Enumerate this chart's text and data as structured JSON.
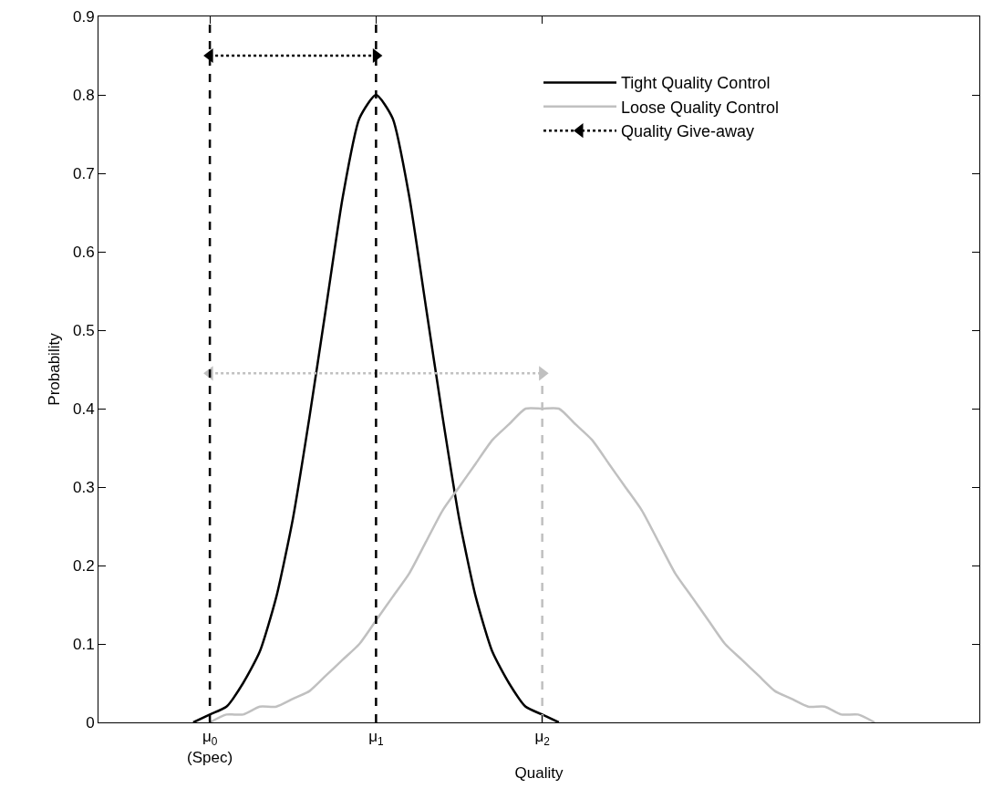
{
  "chart_data": {
    "type": "line",
    "xlabel": "Quality",
    "ylabel": "Probability",
    "xlim": [
      -0.67,
      4.63
    ],
    "ylim": [
      0,
      0.9
    ],
    "xticks": [
      {
        "value": 0,
        "label": "μ$_{0}$\n(Spec)"
      },
      {
        "value": 1,
        "label": "μ$_{1}$"
      },
      {
        "value": 2,
        "label": "μ$_{2}$"
      }
    ],
    "yticks": [
      0,
      0.1,
      0.2,
      0.3,
      0.4,
      0.5,
      0.6,
      0.7,
      0.8,
      0.9
    ],
    "legend": "top right",
    "series": [
      {
        "name": "Tight Quality Control",
        "color": "#000000",
        "line_style": "solid",
        "x": [
          -0.1,
          0.0,
          0.1,
          0.2,
          0.3,
          0.4,
          0.5,
          0.6,
          0.7,
          0.8,
          0.9,
          1.0,
          1.1,
          1.2,
          1.3,
          1.4,
          1.5,
          1.6,
          1.7,
          1.8,
          1.9,
          2.0,
          2.1
        ],
        "values": [
          0.0,
          0.01,
          0.02,
          0.05,
          0.09,
          0.16,
          0.26,
          0.39,
          0.53,
          0.67,
          0.77,
          0.8,
          0.77,
          0.67,
          0.53,
          0.39,
          0.26,
          0.16,
          0.09,
          0.05,
          0.02,
          0.01,
          0.0
        ]
      },
      {
        "name": "Loose Quality Control",
        "color": "#c0c0c0",
        "line_style": "solid",
        "x": [
          0.0,
          0.1,
          0.2,
          0.3,
          0.4,
          0.5,
          0.6,
          0.7,
          0.8,
          0.9,
          1.0,
          1.1,
          1.2,
          1.3,
          1.4,
          1.5,
          1.6,
          1.7,
          1.8,
          1.9,
          2.0,
          2.1,
          2.2,
          2.3,
          2.4,
          2.5,
          2.6,
          2.7,
          2.8,
          2.9,
          3.0,
          3.1,
          3.2,
          3.3,
          3.4,
          3.5,
          3.6,
          3.7,
          3.8,
          3.9,
          4.0
        ],
        "values": [
          0.0,
          0.01,
          0.01,
          0.02,
          0.02,
          0.03,
          0.04,
          0.06,
          0.08,
          0.1,
          0.13,
          0.16,
          0.19,
          0.23,
          0.27,
          0.3,
          0.33,
          0.36,
          0.38,
          0.4,
          0.4,
          0.4,
          0.38,
          0.36,
          0.33,
          0.3,
          0.27,
          0.23,
          0.19,
          0.16,
          0.13,
          0.1,
          0.08,
          0.06,
          0.04,
          0.03,
          0.02,
          0.02,
          0.01,
          0.01,
          0.0
        ]
      },
      {
        "name": "Quality Give-away",
        "color": "#000000",
        "line_style": "dotted",
        "marker": "triangle",
        "x": [
          0,
          1
        ],
        "values": [
          0.85,
          0.85
        ]
      },
      {
        "color": "#c0c0c0",
        "line_style": "dotted",
        "marker": "triangle",
        "x": [
          0,
          2
        ],
        "values": [
          0.445,
          0.445
        ]
      },
      {
        "color": "#c0c0c0",
        "line_style": "dashed",
        "x": [
          2,
          2
        ],
        "values": [
          0,
          0.445
        ]
      }
    ],
    "ref_lines": [
      {
        "axis": "x",
        "value": 0,
        "color": "#000000",
        "line_style": "dashed"
      },
      {
        "axis": "x",
        "value": 1,
        "color": "#000000",
        "line_style": "dashed"
      }
    ]
  }
}
